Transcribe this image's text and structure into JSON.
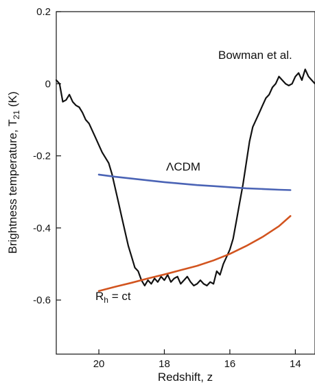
{
  "chart_data": {
    "type": "line",
    "title": "",
    "xlabel": "Redshift, z",
    "ylabel": "Brightness temperature, T",
    "ylabel_sub": "21",
    "ylabel_unit": " (K)",
    "xlim": [
      21.3,
      13.4
    ],
    "ylim": [
      -0.75,
      0.2
    ],
    "x_ticks": [
      20,
      18,
      16,
      14
    ],
    "x_tick_labels": [
      "20",
      "18",
      "16",
      "14"
    ],
    "y_ticks": [
      0.2,
      0,
      -0.2,
      -0.4,
      -0.6
    ],
    "y_tick_labels": [
      "0.2",
      "0",
      "-0.2",
      "-0.4",
      "-0.6"
    ],
    "grid": false,
    "series": [
      {
        "name": "Bowman et al.",
        "color": "#111111",
        "x": [
          21.3,
          21.2,
          21.1,
          21.0,
          20.9,
          20.8,
          20.7,
          20.6,
          20.5,
          20.4,
          20.3,
          20.2,
          20.1,
          20.0,
          19.9,
          19.8,
          19.7,
          19.6,
          19.5,
          19.4,
          19.3,
          19.2,
          19.1,
          19.0,
          18.9,
          18.8,
          18.7,
          18.6,
          18.5,
          18.4,
          18.3,
          18.2,
          18.1,
          18.0,
          17.9,
          17.8,
          17.7,
          17.6,
          17.5,
          17.4,
          17.3,
          17.2,
          17.1,
          17.0,
          16.9,
          16.8,
          16.7,
          16.6,
          16.5,
          16.4,
          16.3,
          16.2,
          16.1,
          16.0,
          15.9,
          15.8,
          15.7,
          15.6,
          15.5,
          15.4,
          15.3,
          15.2,
          15.1,
          15.0,
          14.9,
          14.8,
          14.7,
          14.6,
          14.5,
          14.4,
          14.3,
          14.2,
          14.1,
          14.0,
          13.9,
          13.8,
          13.7,
          13.6,
          13.5,
          13.4
        ],
        "y": [
          0.01,
          0.0,
          -0.05,
          -0.045,
          -0.03,
          -0.05,
          -0.06,
          -0.065,
          -0.08,
          -0.1,
          -0.11,
          -0.13,
          -0.15,
          -0.17,
          -0.19,
          -0.205,
          -0.22,
          -0.25,
          -0.29,
          -0.33,
          -0.37,
          -0.41,
          -0.45,
          -0.48,
          -0.51,
          -0.52,
          -0.545,
          -0.56,
          -0.545,
          -0.555,
          -0.54,
          -0.55,
          -0.535,
          -0.545,
          -0.53,
          -0.55,
          -0.54,
          -0.535,
          -0.555,
          -0.545,
          -0.535,
          -0.55,
          -0.56,
          -0.555,
          -0.545,
          -0.555,
          -0.56,
          -0.55,
          -0.555,
          -0.52,
          -0.53,
          -0.5,
          -0.48,
          -0.46,
          -0.43,
          -0.38,
          -0.33,
          -0.28,
          -0.22,
          -0.16,
          -0.12,
          -0.1,
          -0.08,
          -0.06,
          -0.04,
          -0.03,
          -0.01,
          0.0,
          0.02,
          0.01,
          0.0,
          -0.005,
          0.0,
          0.02,
          0.03,
          0.01,
          0.04,
          0.02,
          0.01,
          0.0
        ]
      },
      {
        "name": "ΛCDM",
        "color": "#4a63b5",
        "x": [
          20.0,
          19.5,
          19.0,
          18.5,
          18.0,
          17.5,
          17.0,
          16.5,
          16.0,
          15.5,
          15.0,
          14.5,
          14.15
        ],
        "y": [
          -0.252,
          -0.258,
          -0.263,
          -0.268,
          -0.273,
          -0.277,
          -0.281,
          -0.284,
          -0.287,
          -0.29,
          -0.292,
          -0.294,
          -0.295
        ]
      },
      {
        "name": "R",
        "name_sub": "h",
        "name_suffix": " = ct",
        "color": "#d2541f",
        "x": [
          20.0,
          19.5,
          19.0,
          18.5,
          18.0,
          17.5,
          17.0,
          16.5,
          16.0,
          15.5,
          15.0,
          14.5,
          14.15
        ],
        "y": [
          -0.575,
          -0.563,
          -0.552,
          -0.54,
          -0.529,
          -0.517,
          -0.505,
          -0.49,
          -0.472,
          -0.45,
          -0.425,
          -0.395,
          -0.367
        ]
      }
    ]
  }
}
